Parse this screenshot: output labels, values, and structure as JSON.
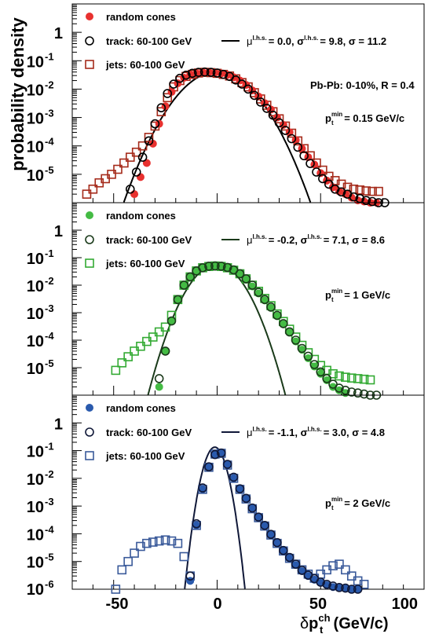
{
  "figure": {
    "ylabel": "probability density",
    "xlabel_delta": "δ",
    "xlabel_p": "p",
    "xlabel_sup": "ch",
    "xlabel_sub": "t",
    "xlabel_units": "(GeV/c)",
    "x_tick_labels": [
      "-50",
      "0",
      "50",
      "100"
    ],
    "y_tick_labels": [
      "1",
      "10",
      "10",
      "10",
      "10",
      "10"
    ],
    "y_tick_exponents": [
      "",
      "-1",
      "-2",
      "-3",
      "-4",
      "-5"
    ],
    "bottom_extra_tick": {
      "label": "10",
      "exp": "-6"
    }
  },
  "chart_data": [
    {
      "type": "scatter",
      "panel": "top",
      "x_axis": {
        "label": "δp_t^ch (GeV/c)",
        "range": [
          -70,
          100
        ],
        "scale": "linear"
      },
      "y_axis": {
        "label": "probability density",
        "range": [
          1e-06,
          10
        ],
        "scale": "log"
      },
      "accent_color": "#e8312f",
      "legend": {
        "random": "random cones",
        "track": "track: 60-100 GeV",
        "jets": "jets: 60-100 GeV",
        "fit_mu": "μ",
        "fit_sup": "l.h.s.",
        "fit_eq1": "=  0.0, σ",
        "fit_sup2": "l.h.s.",
        "fit_rest": "= 9.8, σ = 11.2"
      },
      "annotation": "Pb-Pb:  0-10%, R = 0.4",
      "ptmin": {
        "p": "p",
        "sub": "t",
        "sup": "min",
        "value": "= 0.15 GeV/c"
      },
      "gaussian": {
        "mu": 0.0,
        "sigma": 9.8
      },
      "series": [
        {
          "name": "random cones",
          "marker": "filled-circle",
          "color": "#e8312f",
          "x": [
            -40,
            -37,
            -34,
            -31,
            -28,
            -25,
            -22,
            -19,
            -16,
            -13,
            -10,
            -7,
            -4,
            -1,
            2,
            5,
            8,
            11,
            14,
            17,
            20,
            23,
            26,
            29,
            32,
            35,
            38,
            41,
            44,
            47,
            50,
            53,
            56,
            59,
            62,
            65,
            68,
            71,
            74,
            77
          ],
          "y": [
            2e-06,
            8e-06,
            2.5e-05,
            0.00012,
            0.0006,
            0.0025,
            0.008,
            0.016,
            0.025,
            0.032,
            0.036,
            0.039,
            0.039,
            0.038,
            0.036,
            0.032,
            0.026,
            0.02,
            0.014,
            0.009,
            0.0055,
            0.0032,
            0.0019,
            0.001,
            0.00055,
            0.0003,
            0.00016,
            8e-05,
            4e-05,
            2.2e-05,
            1.1e-05,
            6e-06,
            3.5e-06,
            2.5e-06,
            2e-06,
            1.5e-06,
            1.2e-06,
            1.1e-06,
            1e-06,
            1e-06
          ]
        },
        {
          "name": "track: 60-100 GeV",
          "marker": "open-circle",
          "color": "#000000",
          "x": [
            -42,
            -39,
            -36,
            -33,
            -30,
            -27,
            -24,
            -21,
            -18,
            -15,
            -12,
            -9,
            -6,
            -3,
            0,
            3,
            6,
            9,
            12,
            15,
            18,
            21,
            24,
            27,
            30,
            33,
            36,
            39,
            42,
            45,
            48,
            51,
            54,
            57,
            60,
            63,
            66,
            69,
            72,
            75,
            78,
            81
          ],
          "y": [
            3e-06,
            1.2e-05,
            4e-05,
            0.00015,
            0.0006,
            0.0022,
            0.007,
            0.015,
            0.024,
            0.031,
            0.036,
            0.039,
            0.04,
            0.039,
            0.037,
            0.033,
            0.028,
            0.021,
            0.015,
            0.01,
            0.006,
            0.0035,
            0.0021,
            0.0012,
            0.00065,
            0.00035,
            0.00018,
            9e-05,
            4.5e-05,
            2.4e-05,
            1.2e-05,
            7e-06,
            4.5e-06,
            3e-06,
            2.4e-06,
            2e-06,
            1.6e-06,
            1.4e-06,
            1.2e-06,
            1.1e-06,
            1e-06,
            1e-06
          ]
        },
        {
          "name": "jets: 60-100 GeV",
          "marker": "open-square",
          "color": "#a52a1a",
          "x": [
            -63,
            -60,
            -57,
            -54,
            -51,
            -48,
            -45,
            -42,
            -39,
            -36,
            -33,
            -30,
            -27,
            -24,
            -21,
            -18,
            -15,
            -12,
            -9,
            -6,
            -3,
            0,
            3,
            6,
            9,
            12,
            15,
            18,
            21,
            24,
            27,
            30,
            33,
            36,
            39,
            42,
            45,
            48,
            51,
            54,
            57,
            60,
            63,
            66,
            69,
            72,
            75,
            78
          ],
          "y": [
            2e-06,
            3e-06,
            5e-06,
            7e-06,
            1e-05,
            1.5e-05,
            2.5e-05,
            4e-05,
            6e-05,
            0.0001,
            0.0002,
            0.0005,
            0.0016,
            0.005,
            0.012,
            0.02,
            0.028,
            0.033,
            0.037,
            0.039,
            0.038,
            0.036,
            0.033,
            0.029,
            0.023,
            0.017,
            0.012,
            0.0075,
            0.0045,
            0.0027,
            0.0016,
            0.0009,
            0.0005,
            0.00028,
            0.00015,
            8e-05,
            4.5e-05,
            2.5e-05,
            1.4e-05,
            8.5e-06,
            6e-06,
            4.5e-06,
            3.5e-06,
            3e-06,
            2.8e-06,
            2.6e-06,
            2.5e-06,
            2.5e-06
          ]
        }
      ]
    },
    {
      "type": "scatter",
      "panel": "middle",
      "x_axis": {
        "label": "δp_t^ch (GeV/c)",
        "range": [
          -70,
          100
        ],
        "scale": "linear"
      },
      "y_axis": {
        "label": "probability density",
        "range": [
          1e-06,
          10
        ],
        "scale": "log"
      },
      "accent_color": "#44bb44",
      "legend": {
        "random": "random cones",
        "track": "track: 60-100 GeV",
        "jets": "jets: 60-100 GeV",
        "fit_mu": "μ",
        "fit_sup": "l.h.s.",
        "fit_eq1": "= -0.2, σ",
        "fit_sup2": "l.h.s.",
        "fit_rest": "= 7.1, σ = 8.6"
      },
      "ptmin": {
        "p": "p",
        "sub": "t",
        "sup": "min",
        "value": "= 1 GeV/c"
      },
      "gaussian": {
        "mu": -0.2,
        "sigma": 7.1
      },
      "series": [
        {
          "name": "random cones",
          "marker": "filled-circle",
          "color": "#44bb44",
          "x": [
            -28,
            -25,
            -22,
            -19,
            -16,
            -13,
            -10,
            -7,
            -4,
            -1,
            2,
            5,
            8,
            11,
            14,
            17,
            20,
            23,
            26,
            29,
            32,
            35,
            38,
            41,
            44,
            47,
            50,
            53,
            56,
            59,
            62
          ],
          "y": [
            2e-06,
            4e-05,
            0.0005,
            0.003,
            0.01,
            0.02,
            0.032,
            0.042,
            0.048,
            0.05,
            0.048,
            0.043,
            0.035,
            0.025,
            0.016,
            0.009,
            0.005,
            0.0028,
            0.0015,
            0.00075,
            0.00038,
            0.00019,
            9e-05,
            4.5e-05,
            2.2e-05,
            1.1e-05,
            6e-06,
            3.5e-06,
            2e-06,
            1.5e-06,
            1.2e-06
          ]
        },
        {
          "name": "track: 60-100 GeV",
          "marker": "open-circle",
          "color": "#1a3a1a",
          "x": [
            -28,
            -25,
            -22,
            -19,
            -16,
            -13,
            -10,
            -7,
            -4,
            -1,
            2,
            5,
            8,
            11,
            14,
            17,
            20,
            23,
            26,
            29,
            32,
            35,
            38,
            41,
            44,
            47,
            50,
            53,
            56,
            59,
            62,
            65,
            68,
            71,
            74,
            77
          ],
          "y": [
            4e-06,
            4e-05,
            0.0005,
            0.003,
            0.01,
            0.02,
            0.033,
            0.043,
            0.049,
            0.05,
            0.049,
            0.044,
            0.036,
            0.026,
            0.017,
            0.01,
            0.0055,
            0.003,
            0.0016,
            0.0008,
            0.0004,
            0.0002,
            0.0001,
            5e-05,
            2.6e-05,
            1.3e-05,
            7e-06,
            4e-06,
            2.5e-06,
            1.8e-06,
            1.5e-06,
            1.3e-06,
            1.2e-06,
            1.1e-06,
            1e-06,
            1e-06
          ]
        },
        {
          "name": "jets: 60-100 GeV",
          "marker": "open-square",
          "color": "#33aa33",
          "x": [
            -49,
            -46,
            -43,
            -40,
            -37,
            -34,
            -31,
            -28,
            -25,
            -22,
            -19,
            -16,
            -13,
            -10,
            -7,
            -4,
            -1,
            2,
            5,
            8,
            11,
            14,
            17,
            20,
            23,
            26,
            29,
            32,
            35,
            38,
            41,
            44,
            47,
            50,
            53,
            56,
            59,
            62,
            65,
            68,
            71,
            74
          ],
          "y": [
            8e-06,
            1.5e-05,
            2.5e-05,
            4e-05,
            6e-05,
            9e-05,
            0.00013,
            0.0002,
            0.0003,
            0.0008,
            0.003,
            0.01,
            0.02,
            0.033,
            0.043,
            0.048,
            0.05,
            0.048,
            0.043,
            0.035,
            0.026,
            0.017,
            0.01,
            0.006,
            0.0033,
            0.0018,
            0.0009,
            0.00048,
            0.00025,
            0.00013,
            6.5e-05,
            3.5e-05,
            2e-05,
            1.2e-05,
            8e-06,
            6e-06,
            5e-06,
            4.5e-06,
            4.2e-06,
            4e-06,
            3.8e-06,
            3.6e-06
          ]
        }
      ]
    },
    {
      "type": "scatter",
      "panel": "bottom",
      "x_axis": {
        "label": "δp_t^ch (GeV/c)",
        "range": [
          -70,
          100
        ],
        "scale": "linear"
      },
      "y_axis": {
        "label": "probability density",
        "range": [
          1e-06,
          10
        ],
        "scale": "log"
      },
      "accent_color": "#2a5aad",
      "legend": {
        "random": "random cones",
        "track": "track: 60-100 GeV",
        "jets": "jets: 60-100 GeV",
        "fit_mu": "μ",
        "fit_sup": "l.h.s.",
        "fit_eq1": "= -1.1, σ",
        "fit_sup2": "l.h.s.",
        "fit_rest": "= 3.0, σ = 4.8"
      },
      "ptmin": {
        "p": "p",
        "sub": "t",
        "sup": "min",
        "value": "= 2 GeV/c"
      },
      "gaussian": {
        "mu": -1.1,
        "sigma": 3.0
      },
      "series": [
        {
          "name": "random cones",
          "marker": "filled-circle",
          "color": "#2a5aad",
          "x": [
            -13,
            -10,
            -7,
            -4,
            -1,
            2,
            5,
            8,
            11,
            14,
            17,
            20,
            23,
            26,
            29,
            32,
            35,
            38,
            41,
            44,
            47,
            50,
            53,
            56,
            59,
            62,
            65,
            68
          ],
          "y": [
            2e-06,
            0.0002,
            0.004,
            0.025,
            0.07,
            0.08,
            0.03,
            0.01,
            0.004,
            0.0018,
            0.0008,
            0.00038,
            0.00019,
            9e-05,
            4.5e-05,
            2.4e-05,
            1.3e-05,
            7.5e-06,
            4.5e-06,
            3e-06,
            2.2e-06,
            1.7e-06,
            1.4e-06,
            1.2e-06,
            1.1e-06,
            1.05e-06,
            1e-06,
            1e-06
          ]
        },
        {
          "name": "track: 60-100 GeV",
          "marker": "open-circle",
          "color": "#101838",
          "x": [
            -13,
            -10,
            -7,
            -4,
            -1,
            2,
            5,
            8,
            11,
            14,
            17,
            20,
            23,
            26,
            29,
            32,
            35,
            38,
            41,
            44,
            47,
            50,
            53,
            56,
            59,
            62,
            65,
            68
          ],
          "y": [
            3e-06,
            0.00023,
            0.0045,
            0.026,
            0.072,
            0.082,
            0.032,
            0.011,
            0.0042,
            0.0019,
            0.00085,
            0.0004,
            0.0002,
            9.5e-05,
            4.8e-05,
            2.5e-05,
            1.4e-05,
            8e-06,
            4.8e-06,
            3.2e-06,
            2.4e-06,
            1.8e-06,
            1.5e-06,
            1.3e-06,
            1.15e-06,
            1.1e-06,
            1e-06,
            1e-06
          ]
        },
        {
          "name": "jets: 60-100 GeV",
          "marker": "open-square",
          "color": "#3a5a9a",
          "x": [
            -49,
            -46,
            -43,
            -40,
            -37,
            -34,
            -31,
            -28,
            -25,
            -22,
            -19,
            -16,
            -13,
            -10,
            -7,
            -4,
            -1,
            2,
            5,
            8,
            11,
            14,
            17,
            20,
            23,
            26,
            29,
            32,
            35,
            38,
            41,
            44,
            47,
            50,
            53,
            56,
            59,
            62,
            65,
            68,
            71
          ],
          "y": [
            1e-06,
            5e-06,
            1e-05,
            2e-05,
            3.5e-05,
            4.5e-05,
            5e-05,
            5.5e-05,
            6e-05,
            5.5e-05,
            4.5e-05,
            1.5e-05,
            3e-06,
            0.0002,
            0.004,
            0.025,
            0.075,
            0.08,
            0.03,
            0.01,
            0.004,
            0.0018,
            0.0008,
            0.00038,
            0.00019,
            9e-05,
            4.5e-05,
            2.4e-05,
            1.3e-05,
            8e-06,
            5e-06,
            3.5e-06,
            2.5e-06,
            3.5e-06,
            5e-06,
            7e-06,
            8e-06,
            5e-06,
            3e-06,
            2e-06,
            1.5e-06
          ]
        }
      ]
    }
  ]
}
